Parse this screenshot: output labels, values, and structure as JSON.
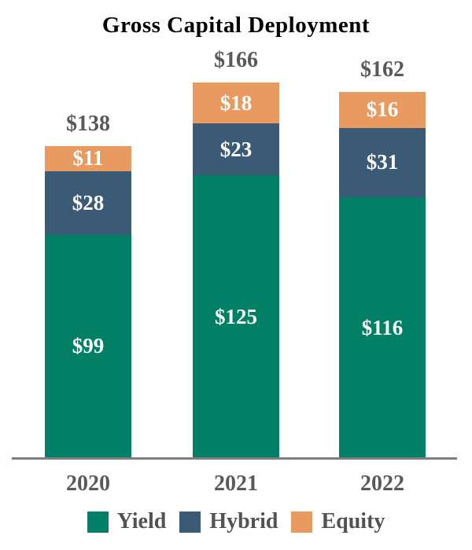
{
  "chart_data": {
    "type": "bar",
    "stacked": true,
    "title": "Gross Capital Deployment",
    "categories": [
      "2020",
      "2021",
      "2022"
    ],
    "series": [
      {
        "name": "Yield",
        "color": "#018066",
        "values": [
          99,
          125,
          116
        ],
        "labels": [
          "$99",
          "$125",
          "$116"
        ]
      },
      {
        "name": "Hybrid",
        "color": "#3A5A76",
        "values": [
          28,
          23,
          31
        ],
        "labels": [
          "$28",
          "$23",
          "$31"
        ]
      },
      {
        "name": "Equity",
        "color": "#E89A61",
        "values": [
          11,
          18,
          16
        ],
        "labels": [
          "$11",
          "$18",
          "$16"
        ]
      }
    ],
    "totals": {
      "values": [
        138,
        166,
        162
      ],
      "labels": [
        "$138",
        "$166",
        "$162"
      ]
    },
    "legend": {
      "position": "bottom",
      "entries": [
        "Yield",
        "Hybrid",
        "Equity"
      ]
    },
    "axes": {
      "x_ticks": [
        "2020",
        "2021",
        "2022"
      ],
      "y_axis_visible": false,
      "grid": false
    },
    "colors": {
      "value_label": "#FFFFFF",
      "total_label": "#595959",
      "tick_label": "#595959",
      "title": "#000000",
      "axis_line": "#7F7F7F"
    }
  }
}
